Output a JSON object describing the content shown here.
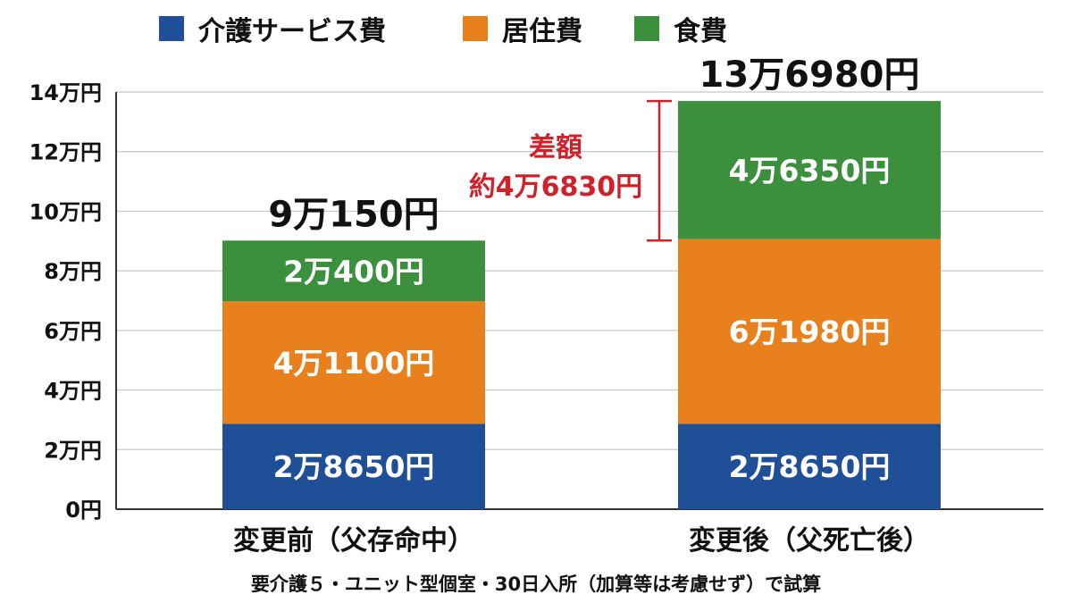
{
  "chart_data": {
    "type": "bar",
    "stacked": true,
    "categories": [
      "変更前（父存命中）",
      "変更後（父死亡後）"
    ],
    "series": [
      {
        "name": "介護サービス費",
        "color": "#1f4f97",
        "values": [
          28650,
          28650
        ],
        "labels": [
          "2万8650円",
          "2万8650円"
        ]
      },
      {
        "name": "居住費",
        "color": "#e8801e",
        "values": [
          41100,
          61980
        ],
        "labels": [
          "4万1100円",
          "6万1980円"
        ]
      },
      {
        "name": "食費",
        "color": "#3c8f3c",
        "values": [
          20400,
          46350
        ],
        "labels": [
          "2万400円",
          "4万6350円"
        ]
      }
    ],
    "totals": [
      90150,
      136980
    ],
    "total_labels": [
      "9万150円",
      "13万6980円"
    ],
    "ylim": [
      0,
      140000
    ],
    "yticks": [
      0,
      20000,
      40000,
      60000,
      80000,
      100000,
      120000,
      140000
    ],
    "ytick_labels": [
      "0円",
      "2万円",
      "4万円",
      "6万円",
      "8万円",
      "10万円",
      "12万円",
      "14万円"
    ],
    "grid": true,
    "legend_position": "top",
    "annotation": {
      "lines": [
        "差額",
        "約4万6830円"
      ],
      "value": 46830,
      "from": 90150,
      "to": 136980,
      "color": "#d0202a"
    }
  },
  "footnote": "要介護５・ユニット型個室・30日入所（加算等は考慮せず）で試算"
}
